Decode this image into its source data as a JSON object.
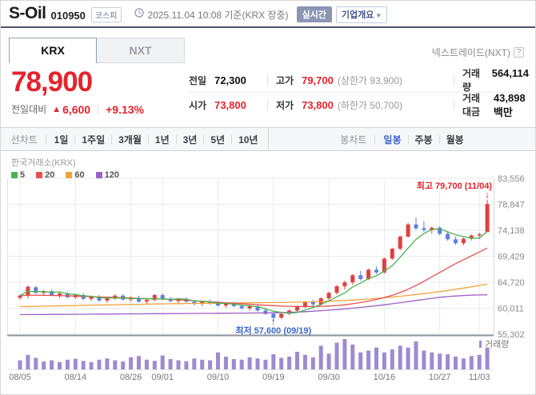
{
  "header": {
    "name": "S-Oil",
    "code": "010950",
    "market_badge": "코스피",
    "timestamp": "2025.11.04 10:08 기준(KRX 장중)",
    "realtime_label": "실시간",
    "overview_label": "기업개요",
    "overview_caret": "▼"
  },
  "tabs": {
    "krx": "KRX",
    "nxt": "NXT",
    "nxt_info": "넥스트레이드(NXT)",
    "help_icon": "?"
  },
  "price": {
    "current": "78,900",
    "change_label": "전일대비",
    "change_arrow": "▲",
    "change_value": "6,600",
    "change_percent": "+9.13%"
  },
  "details": {
    "rows": [
      [
        {
          "label": "전일",
          "value": "72,300",
          "red": false
        },
        {
          "label": "고가",
          "value": "79,700",
          "sub": "(상한가 93,900)",
          "red": true
        },
        {
          "label": "거래량",
          "value": "564,114",
          "red": false
        }
      ],
      [
        {
          "label": "시가",
          "value": "73,800",
          "red": true
        },
        {
          "label": "저가",
          "value": "73,800",
          "sub": "(하한가 50,700)",
          "red": true
        },
        {
          "label": "거래대금",
          "value": "43,898 백만",
          "red": false
        }
      ]
    ]
  },
  "toolbar": {
    "line_label": "선차트",
    "ranges": [
      "1일",
      "1주일",
      "3개월",
      "1년",
      "3년",
      "5년",
      "10년"
    ],
    "candle_label": "봉차트",
    "candle_modes": [
      {
        "label": "일봉",
        "active": true
      },
      {
        "label": "주봉",
        "active": false
      },
      {
        "label": "월봉",
        "active": false
      }
    ]
  },
  "chart_data": {
    "type": "candlestick",
    "source_label": "한국거래소(KRX)",
    "legend": [
      {
        "label": "5",
        "color": "#49b24e"
      },
      {
        "label": "20",
        "color": "#e8504f"
      },
      {
        "label": "60",
        "color": "#f2a33c"
      },
      {
        "label": "120",
        "color": "#9c5fc7"
      }
    ],
    "ylim": [
      55302,
      83556
    ],
    "y_ticks": [
      {
        "value": 83556,
        "label": "83,556"
      },
      {
        "value": 78847,
        "label": "78,847"
      },
      {
        "value": 74138,
        "label": "74,138"
      },
      {
        "value": 69429,
        "label": "69,429"
      },
      {
        "value": 64720,
        "label": "64,720"
      },
      {
        "value": 60011,
        "label": "60,011"
      },
      {
        "value": 55302,
        "label": "55,302"
      }
    ],
    "x_ticks": [
      {
        "label": "08/05",
        "index": 0
      },
      {
        "label": "08/14",
        "index": 7
      },
      {
        "label": "08/26",
        "index": 14
      },
      {
        "label": "09/01",
        "index": 18
      },
      {
        "label": "09/10",
        "index": 25
      },
      {
        "label": "09/19",
        "index": 32
      },
      {
        "label": "09/30",
        "index": 39
      },
      {
        "label": "10/16",
        "index": 46
      },
      {
        "label": "10/27",
        "index": 53
      },
      {
        "label": "11/03",
        "index": 58
      }
    ],
    "candles": [
      [
        61900,
        62500,
        61600,
        62300
      ],
      [
        62300,
        64200,
        61800,
        63900
      ],
      [
        63800,
        64100,
        62600,
        62800
      ],
      [
        62800,
        63300,
        62300,
        63100
      ],
      [
        63100,
        63400,
        62200,
        62400
      ],
      [
        62400,
        62900,
        61900,
        62700
      ],
      [
        62700,
        63000,
        61800,
        62000
      ],
      [
        62000,
        62600,
        61700,
        62400
      ],
      [
        62400,
        62700,
        61500,
        61700
      ],
      [
        61700,
        62300,
        61300,
        62100
      ],
      [
        62100,
        62400,
        61200,
        61400
      ],
      [
        61400,
        62000,
        61000,
        61800
      ],
      [
        61800,
        62500,
        61500,
        62300
      ],
      [
        62300,
        62600,
        61400,
        61600
      ],
      [
        61600,
        62200,
        61200,
        61900
      ],
      [
        61900,
        62300,
        61000,
        61200
      ],
      [
        61200,
        61800,
        60800,
        61500
      ],
      [
        61500,
        62600,
        61300,
        62400
      ],
      [
        62400,
        62700,
        61500,
        61700
      ],
      [
        61700,
        62100,
        61100,
        61300
      ],
      [
        61300,
        61900,
        60900,
        61700
      ],
      [
        61700,
        62000,
        61000,
        61200
      ],
      [
        61200,
        61500,
        60500,
        60800
      ],
      [
        60800,
        61400,
        60400,
        61200
      ],
      [
        61200,
        61600,
        60600,
        60900
      ],
      [
        60900,
        61300,
        60300,
        60500
      ],
      [
        60500,
        61100,
        60100,
        60900
      ],
      [
        60900,
        61200,
        60200,
        60400
      ],
      [
        60400,
        60800,
        59800,
        60000
      ],
      [
        60000,
        60600,
        59600,
        60400
      ],
      [
        60400,
        60700,
        59400,
        59600
      ],
      [
        59600,
        60100,
        58800,
        59000
      ],
      [
        59000,
        59300,
        57600,
        58300
      ],
      [
        58300,
        59200,
        58000,
        59000
      ],
      [
        59000,
        59800,
        58700,
        59600
      ],
      [
        59600,
        60500,
        59300,
        60300
      ],
      [
        60300,
        61300,
        60000,
        61100
      ],
      [
        61100,
        61600,
        60400,
        60700
      ],
      [
        60700,
        62000,
        60500,
        61800
      ],
      [
        61800,
        63000,
        61500,
        62800
      ],
      [
        62800,
        64200,
        62500,
        64000
      ],
      [
        64000,
        65000,
        63400,
        64700
      ],
      [
        64700,
        66200,
        64300,
        66000
      ],
      [
        66000,
        66800,
        65000,
        65300
      ],
      [
        65300,
        67200,
        65100,
        67000
      ],
      [
        67000,
        67600,
        66200,
        66500
      ],
      [
        66500,
        69200,
        66300,
        69000
      ],
      [
        69000,
        71000,
        68800,
        70800
      ],
      [
        70800,
        73200,
        70500,
        73000
      ],
      [
        73000,
        75500,
        72800,
        75200
      ],
      [
        75200,
        76500,
        74200,
        74500
      ],
      [
        74500,
        75800,
        73800,
        74200
      ],
      [
        74200,
        74800,
        73500,
        74600
      ],
      [
        74600,
        74900,
        73200,
        73500
      ],
      [
        73500,
        73800,
        72200,
        72500
      ],
      [
        72500,
        73000,
        71500,
        71800
      ],
      [
        71800,
        72800,
        71400,
        72600
      ],
      [
        72600,
        73400,
        72300,
        73200
      ],
      [
        73200,
        73700,
        72600,
        73400
      ],
      [
        73800,
        79700,
        73800,
        78900
      ]
    ],
    "ma20": [
      62300,
      62350,
      62380,
      62360,
      62330,
      62300,
      62260,
      62210,
      62160,
      62110,
      62060,
      62010,
      61960,
      61910,
      61860,
      61810,
      61760,
      61720,
      61680,
      61630,
      61550,
      61460,
      61370,
      61280,
      61190,
      61100,
      61010,
      60920,
      60830,
      60740,
      60650,
      60560,
      60470,
      60410,
      60360,
      60330,
      60320,
      60330,
      60360,
      60410,
      60500,
      60640,
      60820,
      61040,
      61300,
      61600,
      61950,
      62350,
      62850,
      63450,
      64150,
      64900,
      65700,
      66500,
      67300,
      68100,
      68800,
      69500,
      70200,
      70900
    ],
    "ma60": [
      60300,
      60330,
      60360,
      60390,
      60420,
      60450,
      60480,
      60510,
      60540,
      60570,
      60600,
      60625,
      60650,
      60675,
      60700,
      60725,
      60750,
      60775,
      60800,
      60820,
      60840,
      60860,
      60880,
      60900,
      60915,
      60930,
      60945,
      60960,
      60975,
      60990,
      61005,
      61020,
      61035,
      61055,
      61080,
      61110,
      61145,
      61185,
      61230,
      61280,
      61340,
      61410,
      61490,
      61580,
      61680,
      61790,
      61910,
      62040,
      62180,
      62330,
      62490,
      62660,
      62840,
      63030,
      63230,
      63440,
      63660,
      63890,
      64130,
      64380
    ],
    "ma120": [
      58850,
      58860,
      58870,
      58880,
      58890,
      58900,
      58910,
      58920,
      58930,
      58940,
      58950,
      58960,
      58970,
      58980,
      58990,
      59000,
      59010,
      59020,
      59030,
      59040,
      59050,
      59060,
      59070,
      59080,
      59090,
      59100,
      59110,
      59120,
      59130,
      59140,
      59150,
      59160,
      59170,
      59210,
      59260,
      59320,
      59390,
      59470,
      59560,
      59660,
      59770,
      59890,
      60020,
      60160,
      60310,
      60470,
      60640,
      60820,
      61010,
      61210,
      61410,
      61610,
      61810,
      62000,
      62130,
      62230,
      62310,
      62370,
      62410,
      62440
    ],
    "volume_relative": [
      0.3,
      0.48,
      0.38,
      0.26,
      0.3,
      0.24,
      0.32,
      0.35,
      0.28,
      0.24,
      0.32,
      0.36,
      0.3,
      0.26,
      0.4,
      0.44,
      0.32,
      0.28,
      0.46,
      0.34,
      0.3,
      0.27,
      0.36,
      0.32,
      0.3,
      0.56,
      0.42,
      0.34,
      0.32,
      0.4,
      0.36,
      0.32,
      0.5,
      0.38,
      0.42,
      0.58,
      0.48,
      0.4,
      0.78,
      0.52,
      0.88,
      1.0,
      0.82,
      0.56,
      0.62,
      0.72,
      0.56,
      0.66,
      0.78,
      0.72,
      0.92,
      0.62,
      0.56,
      0.52,
      0.5,
      0.42,
      0.36,
      0.44,
      0.48,
      0.72
    ],
    "annotations": {
      "high": {
        "text": "최고 79,700 (11/04)",
        "index": 59,
        "price": 79700,
        "arrow": "↓"
      },
      "low": {
        "text": "최저 57,600 (09/19)",
        "index": 32,
        "price": 57600,
        "arrow": "↑"
      }
    },
    "volume_label": "거래량",
    "colors": {
      "up": "#e0403f",
      "down": "#5f7fe0",
      "ma5": "#49b24e",
      "ma20": "#e8504f",
      "ma60": "#f2a33c",
      "ma120": "#9c5fc7",
      "volume": "#9d8bd0",
      "grid": "#ebebeb",
      "axis_text": "#8a8a8a",
      "high_annotation": "#e5232d",
      "low_annotation": "#3a66cc",
      "baseline": "#9097a3"
    }
  }
}
